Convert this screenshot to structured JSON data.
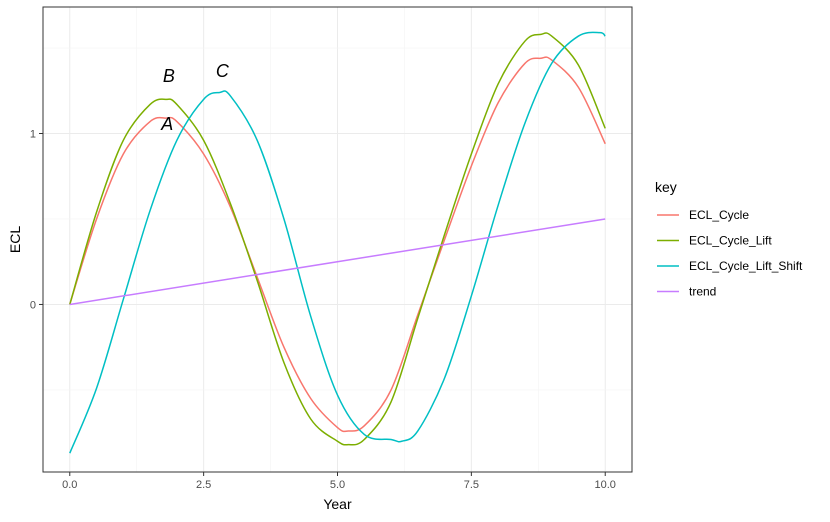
{
  "chart_data": {
    "type": "line",
    "xlabel": "Year",
    "ylabel": "ECL",
    "xlim": [
      -0.5,
      10.5
    ],
    "ylim": [
      -0.98,
      1.74
    ],
    "x_ticks": [
      0.0,
      2.5,
      5.0,
      7.5,
      10.0
    ],
    "x_tick_labels": [
      "0.0",
      "2.5",
      "5.0",
      "7.5",
      "10.0"
    ],
    "y_ticks": [
      0,
      1
    ],
    "y_tick_labels": [
      "0",
      "1"
    ],
    "grid": true,
    "legend": {
      "title": "key",
      "position": "right"
    },
    "series": [
      {
        "name": "ECL_Cycle",
        "color": "#F8766D",
        "x": [
          0.0,
          0.5,
          1.0,
          1.5,
          1.8,
          2.0,
          2.5,
          3.0,
          3.5,
          4.0,
          4.5,
          5.0,
          5.2,
          5.5,
          6.0,
          6.5,
          7.0,
          7.5,
          8.0,
          8.5,
          8.8,
          9.0,
          9.5,
          10.0
        ],
        "values": [
          0.0,
          0.5,
          0.88,
          1.07,
          1.09,
          1.07,
          0.88,
          0.57,
          0.16,
          -0.25,
          -0.55,
          -0.72,
          -0.74,
          -0.71,
          -0.5,
          -0.06,
          0.38,
          0.81,
          1.18,
          1.41,
          1.44,
          1.43,
          1.27,
          0.94
        ]
      },
      {
        "name": "ECL_Cycle_Lift",
        "color": "#7CAE00",
        "x": [
          0.0,
          0.5,
          1.0,
          1.5,
          1.8,
          2.0,
          2.5,
          3.0,
          3.5,
          4.0,
          4.5,
          5.0,
          5.2,
          5.5,
          6.0,
          6.5,
          7.0,
          7.5,
          8.0,
          8.5,
          8.8,
          9.0,
          9.5,
          10.0
        ],
        "values": [
          0.0,
          0.54,
          0.96,
          1.17,
          1.2,
          1.17,
          0.96,
          0.59,
          0.14,
          -0.34,
          -0.67,
          -0.8,
          -0.82,
          -0.79,
          -0.57,
          -0.08,
          0.41,
          0.88,
          1.29,
          1.54,
          1.58,
          1.57,
          1.4,
          1.03
        ]
      },
      {
        "name": "ECL_Cycle_Lift_Shift",
        "color": "#00BFC4",
        "x": [
          0.0,
          0.5,
          1.0,
          1.5,
          2.0,
          2.5,
          2.8,
          3.0,
          3.5,
          4.0,
          4.5,
          5.0,
          5.5,
          6.0,
          6.2,
          6.5,
          7.0,
          7.5,
          8.0,
          8.5,
          9.0,
          9.5,
          9.9,
          10.0
        ],
        "values": [
          -0.87,
          -0.49,
          0.03,
          0.55,
          0.96,
          1.2,
          1.24,
          1.22,
          0.96,
          0.5,
          -0.07,
          -0.53,
          -0.76,
          -0.79,
          -0.8,
          -0.74,
          -0.43,
          0.05,
          0.58,
          1.06,
          1.41,
          1.57,
          1.59,
          1.57
        ]
      },
      {
        "name": "trend",
        "color": "#C77CFF",
        "x": [
          0.0,
          10.0
        ],
        "values": [
          0.0,
          0.5
        ]
      }
    ],
    "annotations": [
      {
        "text": "A",
        "x": 1.82,
        "y": 1.02
      },
      {
        "text": "B",
        "x": 1.85,
        "y": 1.3
      },
      {
        "text": "C",
        "x": 2.85,
        "y": 1.33
      }
    ]
  }
}
